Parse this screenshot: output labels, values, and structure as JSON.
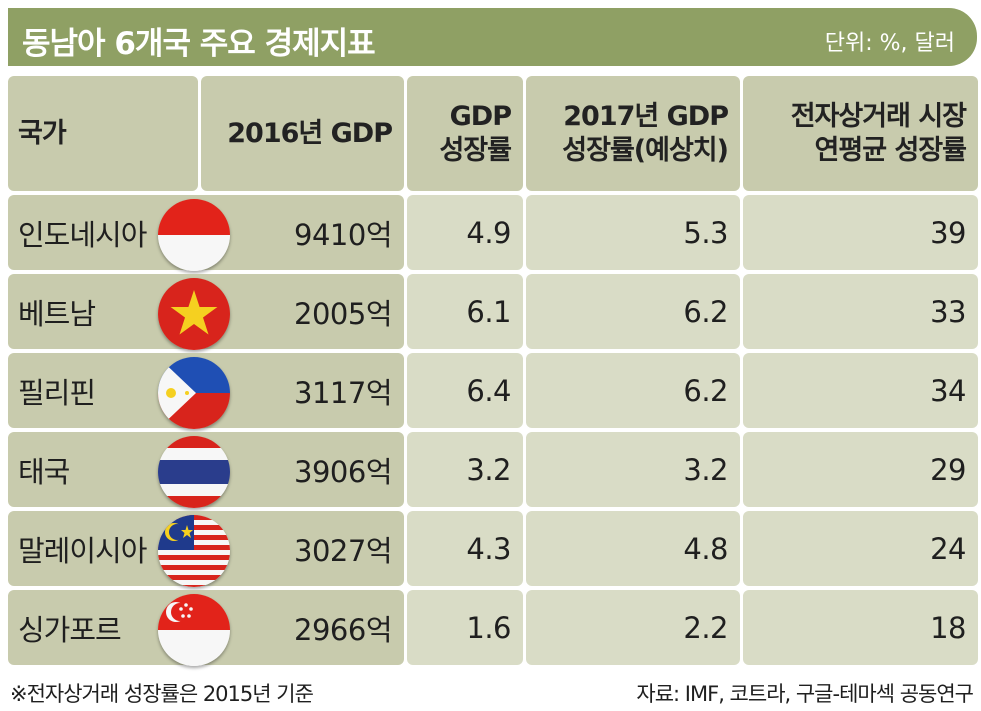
{
  "title": "동남아 6개국 주요 경제지표",
  "unit": "단위: %, 달러",
  "headers": {
    "country": "국가",
    "gdp_2016": "2016년 GDP",
    "growth_l1": "GDP",
    "growth_l2": "성장률",
    "growth2017_l1": "2017년 GDP",
    "growth2017_l2": "성장률(예상치)",
    "ecom_l1": "전자상거래 시장",
    "ecom_l2": "연평균 성장률"
  },
  "rows": [
    {
      "country": "인도네시아",
      "flag": "indonesia-flag-icon",
      "gdp": "9410억",
      "growth": "4.9",
      "growth2017": "5.3",
      "ecom": "39"
    },
    {
      "country": "베트남",
      "flag": "vietnam-flag-icon",
      "gdp": "2005억",
      "growth": "6.1",
      "growth2017": "6.2",
      "ecom": "33"
    },
    {
      "country": "필리핀",
      "flag": "philippines-flag-icon",
      "gdp": "3117억",
      "growth": "6.4",
      "growth2017": "6.2",
      "ecom": "34"
    },
    {
      "country": "태국",
      "flag": "thailand-flag-icon",
      "gdp": "3906억",
      "growth": "3.2",
      "growth2017": "3.2",
      "ecom": "29"
    },
    {
      "country": "말레이시아",
      "flag": "malaysia-flag-icon",
      "gdp": "3027억",
      "growth": "4.3",
      "growth2017": "4.8",
      "ecom": "24"
    },
    {
      "country": "싱가포르",
      "flag": "singapore-flag-icon",
      "gdp": "2966억",
      "growth": "1.6",
      "growth2017": "2.2",
      "ecom": "18"
    }
  ],
  "footnote": "※전자상거래 성장률은 2015년 기준",
  "source": "자료: IMF, 코트라, 구글-테마섹 공동연구",
  "colors": {
    "title_bar": "#8fa064",
    "header_cell": "#c8cbad",
    "data_cell": "#d9dcc6"
  }
}
